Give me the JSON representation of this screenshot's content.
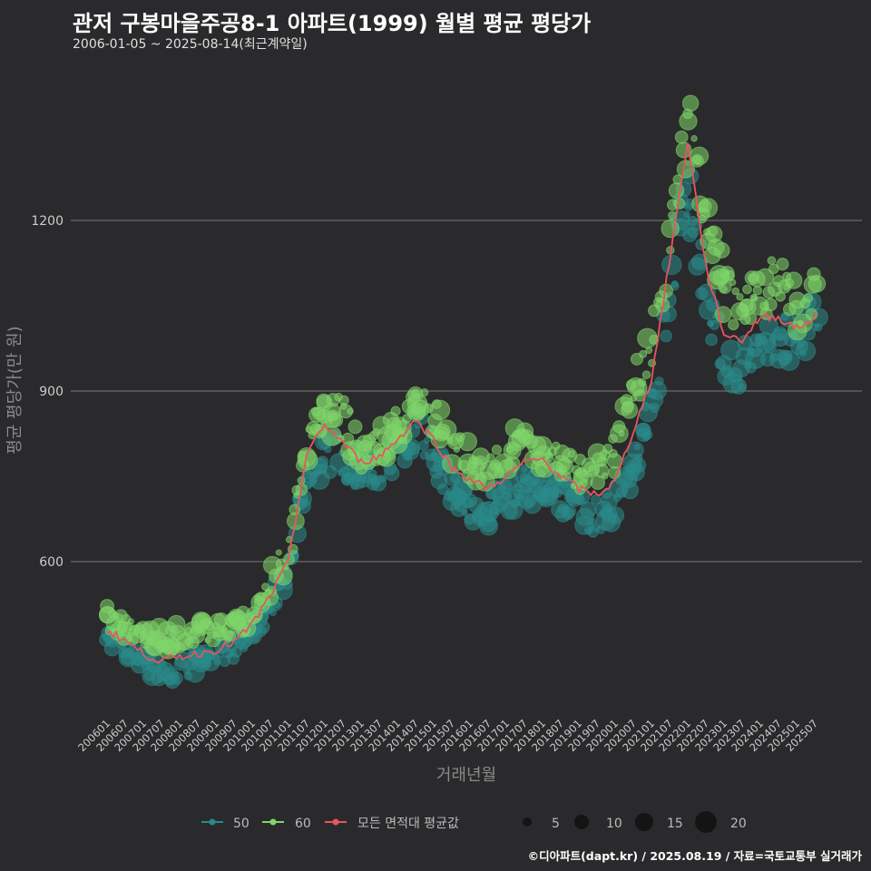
{
  "title": "관저 구봉마을주공8-1 아파트(1999) 월별 평균 평당가",
  "subtitle": "2006-01-05 ~ 2025-08-14(최근계약일)",
  "caption": "©디아파트(dapt.kr) / 2025.08.19 / 자료=국토교통부 실거래가",
  "colors": {
    "background": "#2a2a2c",
    "grid": "#7a7a7a",
    "series_50": "#2a8a8a",
    "series_60": "#7fd66a",
    "average_line": "#e8555f",
    "size_legend": "#111111"
  },
  "chart_data": {
    "type": "scatter",
    "xlabel": "거래년월",
    "ylabel": "평균 평당가(만 원)",
    "y_ticks": [
      600,
      900,
      1200
    ],
    "ylim": [
      340,
      1430
    ],
    "x_ticks": [
      "200601",
      "200607",
      "200701",
      "200707",
      "200801",
      "200807",
      "200901",
      "200907",
      "201001",
      "201007",
      "201101",
      "201107",
      "201201",
      "201207",
      "201301",
      "201307",
      "201401",
      "201407",
      "201501",
      "201507",
      "201601",
      "201607",
      "201701",
      "201707",
      "201801",
      "201807",
      "201901",
      "201907",
      "202001",
      "202007",
      "202101",
      "202107",
      "202201",
      "202207",
      "202301",
      "202307",
      "202401",
      "202407",
      "202501",
      "202507"
    ],
    "grid": true,
    "legend_position": "bottom",
    "series": [
      {
        "name": "50",
        "anchors": [
          [
            2006.0,
            465
          ],
          [
            2006.5,
            445
          ],
          [
            2007.0,
            425
          ],
          [
            2007.5,
            405
          ],
          [
            2008.0,
            410
          ],
          [
            2008.5,
            420
          ],
          [
            2009.0,
            430
          ],
          [
            2009.5,
            445
          ],
          [
            2010.0,
            475
          ],
          [
            2010.5,
            520
          ],
          [
            2011.0,
            580
          ],
          [
            2011.5,
            740
          ],
          [
            2012.0,
            790
          ],
          [
            2012.5,
            780
          ],
          [
            2013.0,
            760
          ],
          [
            2013.5,
            765
          ],
          [
            2014.0,
            790
          ],
          [
            2014.5,
            840
          ],
          [
            2015.0,
            790
          ],
          [
            2015.5,
            730
          ],
          [
            2016.0,
            700
          ],
          [
            2016.5,
            690
          ],
          [
            2017.0,
            710
          ],
          [
            2017.5,
            730
          ],
          [
            2018.0,
            735
          ],
          [
            2018.5,
            720
          ],
          [
            2019.0,
            690
          ],
          [
            2019.5,
            680
          ],
          [
            2020.0,
            700
          ],
          [
            2020.5,
            770
          ],
          [
            2021.0,
            870
          ],
          [
            2021.5,
            1050
          ],
          [
            2022.0,
            1260
          ],
          [
            2022.5,
            1080
          ],
          [
            2023.0,
            950
          ],
          [
            2023.5,
            935
          ],
          [
            2024.0,
            990
          ],
          [
            2024.5,
            990
          ],
          [
            2025.0,
            1000
          ],
          [
            2025.5,
            1020
          ]
        ]
      },
      {
        "name": "60",
        "anchors": [
          [
            2006.0,
            505
          ],
          [
            2006.5,
            480
          ],
          [
            2007.0,
            470
          ],
          [
            2007.5,
            465
          ],
          [
            2008.0,
            470
          ],
          [
            2008.5,
            475
          ],
          [
            2009.0,
            480
          ],
          [
            2009.5,
            485
          ],
          [
            2010.0,
            515
          ],
          [
            2010.5,
            560
          ],
          [
            2011.0,
            620
          ],
          [
            2011.5,
            800
          ],
          [
            2012.0,
            860
          ],
          [
            2012.5,
            850
          ],
          [
            2013.0,
            790
          ],
          [
            2013.5,
            800
          ],
          [
            2014.0,
            840
          ],
          [
            2014.5,
            880
          ],
          [
            2015.0,
            850
          ],
          [
            2015.5,
            800
          ],
          [
            2016.0,
            775
          ],
          [
            2016.5,
            760
          ],
          [
            2017.0,
            785
          ],
          [
            2017.5,
            820
          ],
          [
            2018.0,
            790
          ],
          [
            2018.5,
            770
          ],
          [
            2019.0,
            760
          ],
          [
            2019.5,
            760
          ],
          [
            2020.0,
            790
          ],
          [
            2020.5,
            900
          ],
          [
            2021.0,
            990
          ],
          [
            2021.5,
            1150
          ],
          [
            2022.0,
            1380
          ],
          [
            2022.5,
            1200
          ],
          [
            2023.0,
            1080
          ],
          [
            2023.5,
            1040
          ],
          [
            2024.0,
            1080
          ],
          [
            2024.5,
            1090
          ],
          [
            2025.0,
            1050
          ],
          [
            2025.5,
            1060
          ]
        ]
      }
    ],
    "average_line": {
      "name": "모든 면적대 평균값",
      "x": [
        2006.0,
        2006.5,
        2007.0,
        2007.5,
        2008.0,
        2008.5,
        2009.0,
        2009.5,
        2010.0,
        2010.5,
        2011.0,
        2011.5,
        2012.0,
        2012.5,
        2013.0,
        2013.5,
        2014.0,
        2014.5,
        2015.0,
        2015.5,
        2016.0,
        2016.5,
        2017.0,
        2017.5,
        2018.0,
        2018.5,
        2019.0,
        2019.5,
        2020.0,
        2020.5,
        2021.0,
        2021.5,
        2022.0,
        2022.5,
        2023.0,
        2023.5,
        2024.0,
        2024.5,
        2025.0,
        2025.5
      ],
      "y": [
        478,
        462,
        438,
        425,
        433,
        438,
        445,
        458,
        490,
        540,
        600,
        790,
        840,
        810,
        775,
        785,
        815,
        850,
        815,
        765,
        745,
        728,
        750,
        775,
        780,
        750,
        728,
        718,
        740,
        830,
        920,
        1130,
        1340,
        1120,
        1000,
        990,
        1030,
        1030,
        1010,
        1030
      ]
    },
    "size_legend": [
      5,
      10,
      15,
      20
    ]
  }
}
